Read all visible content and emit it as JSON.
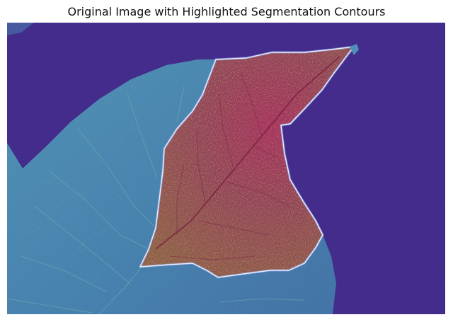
{
  "figure": {
    "title": "Original Image with Highlighted Segmentation Contours"
  },
  "image": {
    "subject": "leaf",
    "colormap": "viridis-like false color",
    "colors": {
      "background": "#40288a",
      "leaf_base": "#3e79a8",
      "leaf_light": "#4f98b0",
      "leaf_texture": "#6eaa9a",
      "highlight_fill": "#8b3f55",
      "highlight_red": "#a5205c",
      "highlight_orange": "#c98a2d",
      "contour": "#dfe7ff"
    }
  }
}
